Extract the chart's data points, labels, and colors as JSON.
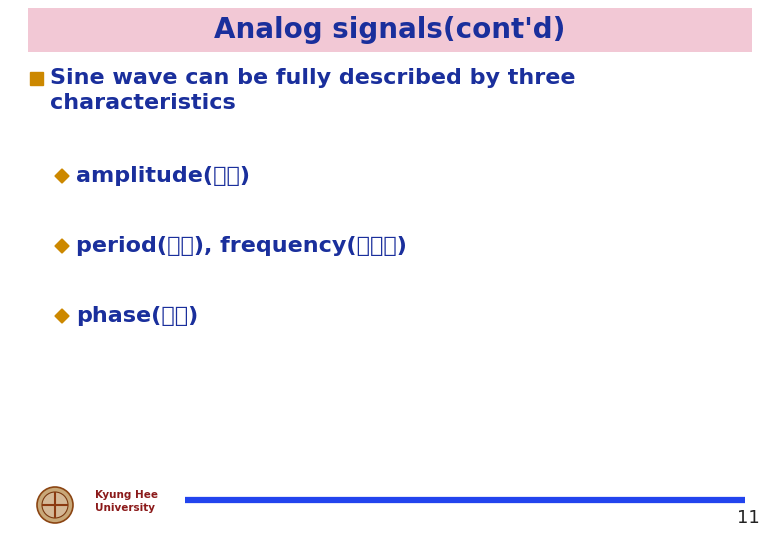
{
  "title": "Analog signals(cont'd)",
  "title_color": "#1A2F9C",
  "title_bg_color": "#F2C8D5",
  "bg_color": "#FFFFFF",
  "bullet_main_color": "#1A2F9C",
  "bullet_square_color": "#CC8800",
  "bullet_diamond_color": "#CC8800",
  "main_bullet_line1": "Sine wave can be fully described by three",
  "main_bullet_line2": "characteristics",
  "sub_bullets": [
    "amplitude(진폭)",
    "period(주기), frequency(주파수)",
    "phase(위상)"
  ],
  "footer_line_color": "#2244EE",
  "footer_text_color": "#8B1A1A",
  "page_number": "11",
  "page_number_color": "#222222",
  "title_fontsize": 20,
  "main_fontsize": 16,
  "sub_fontsize": 16
}
